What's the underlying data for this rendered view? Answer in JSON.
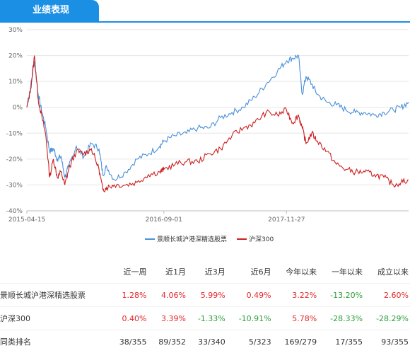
{
  "header": {
    "tab_label": "业绩表现"
  },
  "colors": {
    "accent": "#1a8fe3",
    "fund": "#4a90d9",
    "index": "#cc1f1f",
    "positive": "#e3262a",
    "negative": "#2e9d3a"
  },
  "chart_data": {
    "type": "line",
    "title": "",
    "xlabel": "",
    "ylabel": "",
    "y_unit": "%",
    "ylim": [
      -40,
      30
    ],
    "y_ticks": [
      "30%",
      "20%",
      "10%",
      "0%",
      "-10%",
      "-20%",
      "-30%",
      "-40%"
    ],
    "x_ticks": [
      "2015-04-15",
      "2016-09-01",
      "2017-11-27"
    ],
    "x": [
      "2015-04-15",
      "2015-04-29",
      "2015-05-13",
      "2015-05-27",
      "2015-06-10",
      "2015-06-24",
      "2015-07-08",
      "2015-07-22",
      "2015-08-05",
      "2015-08-19",
      "2015-09-02",
      "2015-09-16",
      "2015-10-14",
      "2015-11-11",
      "2015-12-09",
      "2016-01-06",
      "2016-01-20",
      "2016-02-03",
      "2016-03-02",
      "2016-04-13",
      "2016-05-25",
      "2016-07-06",
      "2016-08-17",
      "2016-09-01",
      "2016-10-12",
      "2016-11-23",
      "2017-01-04",
      "2017-02-15",
      "2017-03-29",
      "2017-05-10",
      "2017-06-21",
      "2017-08-02",
      "2017-09-13",
      "2017-10-25",
      "2017-11-27",
      "2017-12-20",
      "2018-01-10",
      "2018-01-24",
      "2018-02-07",
      "2018-02-28",
      "2018-03-21",
      "2018-04-25",
      "2018-05-30",
      "2018-07-04",
      "2018-08-08",
      "2018-09-12",
      "2018-10-17",
      "2018-11-21",
      "2018-12-26",
      "2019-01-23",
      "2019-02-20"
    ],
    "series": [
      {
        "name": "景顺长城沪港深精选股票",
        "values": [
          0,
          8,
          18,
          5,
          -2,
          -8,
          -17,
          -16,
          -20,
          -19,
          -27,
          -23,
          -15,
          -19,
          -14,
          -16,
          -26,
          -23,
          -28,
          -25,
          -20,
          -18,
          -15,
          -13,
          -11,
          -10,
          -8,
          -8,
          -4,
          -2,
          0,
          4,
          9,
          14,
          18,
          19,
          20,
          5,
          12,
          9,
          5,
          2,
          1,
          -1,
          -2,
          -2,
          -3,
          -2,
          -1,
          0,
          2
        ]
      },
      {
        "name": "沪深300",
        "values": [
          0,
          7,
          20,
          3,
          -4,
          -11,
          -27,
          -20,
          -27,
          -25,
          -30,
          -24,
          -17,
          -18,
          -16,
          -24,
          -32,
          -31,
          -30,
          -30,
          -29,
          -26,
          -25,
          -24,
          -22,
          -21,
          -21,
          -18,
          -16,
          -11,
          -8,
          -6,
          -2,
          -3,
          -1,
          -6,
          -3,
          -8,
          -14,
          -10,
          -13,
          -17,
          -22,
          -24,
          -25,
          -25,
          -26,
          -27,
          -30,
          -29,
          -28
        ]
      }
    ]
  },
  "performance_table": {
    "columns": [
      "近一周",
      "近1月",
      "近3月",
      "近6月",
      "今年以来",
      "一年以来",
      "成立以来"
    ],
    "rows": [
      {
        "name": "景顺长城沪港深精选股票",
        "values": [
          "1.28%",
          "4.06%",
          "5.99%",
          "0.49%",
          "3.22%",
          "-13.20%",
          "2.60%"
        ],
        "tone": [
          "pos",
          "pos",
          "pos",
          "pos",
          "pos",
          "neg",
          "pos"
        ]
      },
      {
        "name": "沪深300",
        "values": [
          "0.40%",
          "3.39%",
          "-1.33%",
          "-10.91%",
          "5.78%",
          "-28.33%",
          "-28.29%"
        ],
        "tone": [
          "pos",
          "pos",
          "neg",
          "neg",
          "pos",
          "neg",
          "neg"
        ]
      },
      {
        "name": "同类排名",
        "values": [
          "38/355",
          "89/352",
          "33/340",
          "5/323",
          "169/279",
          "17/355",
          "93/355"
        ],
        "tone": [
          "neutral",
          "neutral",
          "neutral",
          "neutral",
          "neutral",
          "neutral",
          "neutral"
        ]
      }
    ]
  }
}
